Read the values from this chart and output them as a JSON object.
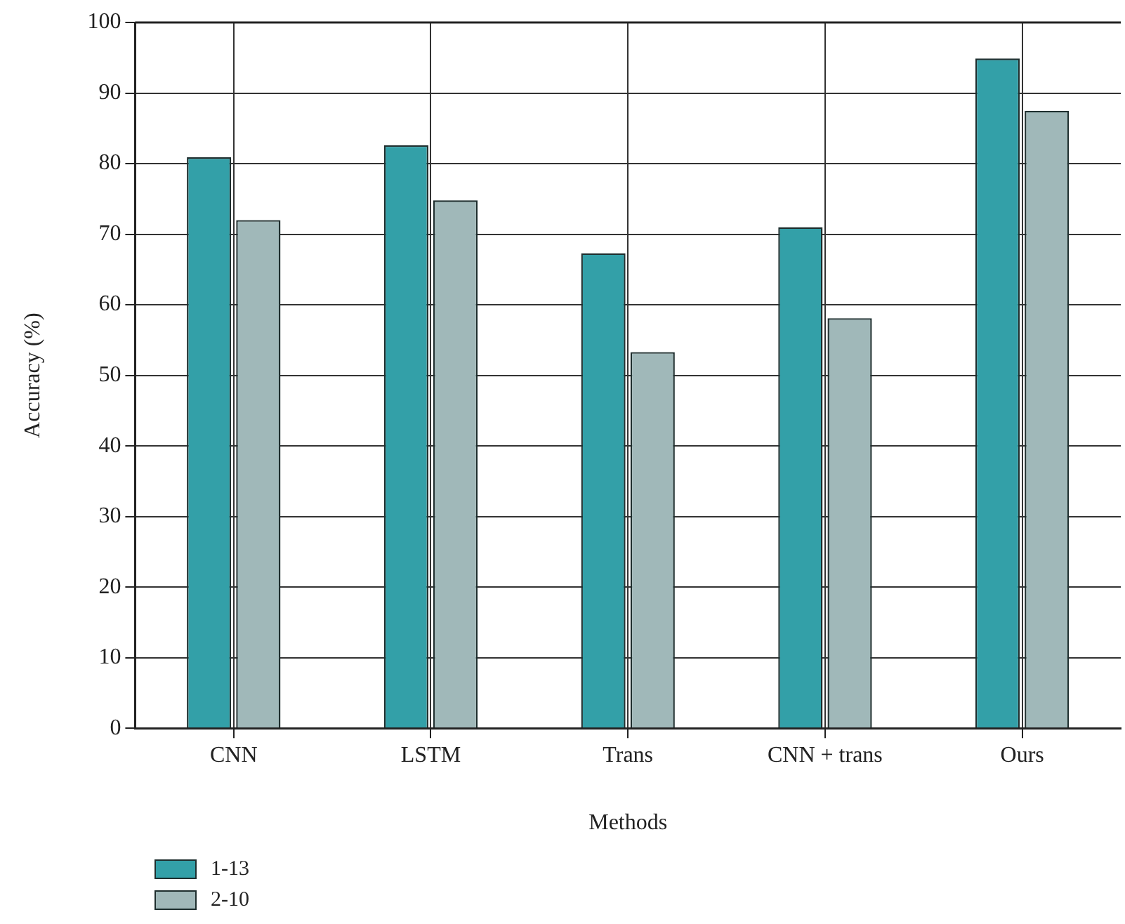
{
  "chart_data": {
    "type": "bar",
    "xlabel": "Methods",
    "ylabel": "Accuracy (%)",
    "categories": [
      "CNN",
      "LSTM",
      "Trans",
      "CNN + trans",
      "Ours"
    ],
    "series": [
      {
        "name": "1-13",
        "color": "#33a0a8",
        "values": [
          80.9,
          82.6,
          67.3,
          71.0,
          94.9
        ]
      },
      {
        "name": "2-10",
        "color": "#a0b8b9",
        "values": [
          72.0,
          74.8,
          53.3,
          58.1,
          87.5
        ]
      }
    ],
    "ylim": [
      0,
      100
    ],
    "yticks": [
      0,
      10,
      20,
      30,
      40,
      50,
      60,
      70,
      80,
      90,
      100
    ],
    "grid": true,
    "legend": "bottom left"
  }
}
